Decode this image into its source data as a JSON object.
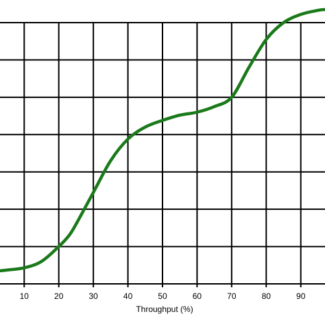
{
  "chart_data": {
    "type": "line",
    "title": "",
    "xlabel": "Throughput (%)",
    "ylabel": "",
    "xlim": [
      3,
      97
    ],
    "ylim": [
      0,
      7
    ],
    "x_ticks": [
      10,
      20,
      30,
      40,
      50,
      60,
      70,
      80,
      90
    ],
    "x_gridlines": [
      10,
      20,
      30,
      40,
      50,
      60,
      70,
      80,
      90
    ],
    "y_gridlines": [
      1,
      2,
      3,
      4,
      5,
      6
    ],
    "grid": true,
    "colors": {
      "series": "#1a7a1a",
      "grid": "#000000"
    },
    "series": [
      {
        "name": "",
        "x": [
          3,
          5,
          10,
          15,
          20,
          23,
          25,
          30,
          35,
          40,
          45,
          50,
          55,
          60,
          65,
          70,
          75,
          80,
          85,
          90,
          95,
          97
        ],
        "y": [
          0.35,
          0.37,
          0.43,
          0.6,
          1.0,
          1.3,
          1.6,
          2.45,
          3.3,
          3.88,
          4.2,
          4.38,
          4.52,
          4.6,
          4.75,
          5.0,
          5.8,
          6.55,
          7.0,
          7.22,
          7.33,
          7.35
        ]
      }
    ]
  }
}
